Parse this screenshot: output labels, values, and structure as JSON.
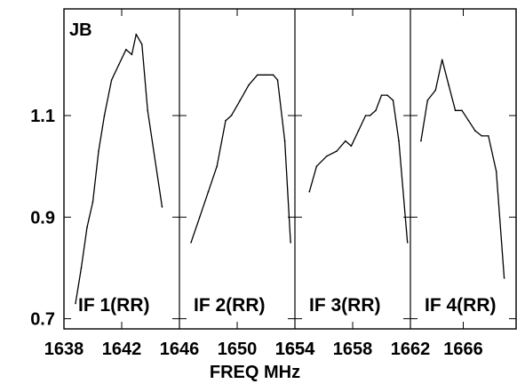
{
  "chart_data": {
    "type": "line",
    "title": "JB",
    "xlabel": "FREQ MHz",
    "ylabel": "",
    "ylim": [
      0.68,
      1.31
    ],
    "y_ticks": [
      0.7,
      0.9,
      1.1
    ],
    "y_tick_labels": [
      "0.7",
      "0.9",
      "1.1"
    ],
    "legend": "none",
    "grid": false,
    "line_color": "#000000",
    "panels": [
      {
        "name": "IF 1(RR)",
        "xlim": [
          1638,
          1646
        ],
        "x_ticks": [
          1638,
          1642,
          1646
        ],
        "x_tick_labels": [
          "1638",
          "1642",
          "1646"
        ],
        "x": [
          1638.8,
          1639.2,
          1639.6,
          1640.0,
          1640.4,
          1640.8,
          1641.3,
          1641.8,
          1642.3,
          1642.7,
          1643.0,
          1643.4,
          1643.8,
          1644.8
        ],
        "y": [
          0.73,
          0.8,
          0.88,
          0.93,
          1.03,
          1.1,
          1.17,
          1.2,
          1.23,
          1.22,
          1.26,
          1.24,
          1.11,
          0.92
        ]
      },
      {
        "name": "IF 2(RR)",
        "xlim": [
          1646,
          1654
        ],
        "x_ticks": [
          1650,
          1654
        ],
        "x_tick_labels": [
          "1650",
          "1654"
        ],
        "x": [
          1646.8,
          1647.4,
          1648.0,
          1648.6,
          1649.2,
          1649.6,
          1650.2,
          1650.8,
          1651.4,
          1652.0,
          1652.5,
          1652.8,
          1653.3,
          1653.7
        ],
        "y": [
          0.85,
          0.9,
          0.95,
          1.0,
          1.09,
          1.1,
          1.13,
          1.16,
          1.18,
          1.18,
          1.18,
          1.17,
          1.05,
          0.85
        ]
      },
      {
        "name": "IF 3(RR)",
        "xlim": [
          1654,
          1662
        ],
        "x_ticks": [
          1654,
          1658,
          1662
        ],
        "x_tick_labels": [
          "1654",
          "1658",
          "1662"
        ],
        "x": [
          1655.0,
          1655.5,
          1656.2,
          1656.9,
          1657.5,
          1657.9,
          1658.4,
          1658.9,
          1659.2,
          1659.6,
          1660.0,
          1660.4,
          1660.8,
          1661.2,
          1661.8
        ],
        "y": [
          0.95,
          1.0,
          1.02,
          1.03,
          1.05,
          1.04,
          1.07,
          1.1,
          1.1,
          1.11,
          1.14,
          1.14,
          1.13,
          1.05,
          0.85
        ]
      },
      {
        "name": "IF 4(RR)",
        "xlim": [
          1662,
          1670
        ],
        "x_ticks": [
          1666
        ],
        "x_tick_labels": [
          "1666"
        ],
        "x": [
          1662.8,
          1663.3,
          1663.9,
          1664.4,
          1664.9,
          1665.4,
          1665.9,
          1666.4,
          1666.9,
          1667.4,
          1667.9,
          1668.5,
          1669.1
        ],
        "y": [
          1.05,
          1.13,
          1.15,
          1.21,
          1.16,
          1.11,
          1.11,
          1.09,
          1.07,
          1.06,
          1.06,
          0.99,
          0.78
        ]
      }
    ]
  }
}
